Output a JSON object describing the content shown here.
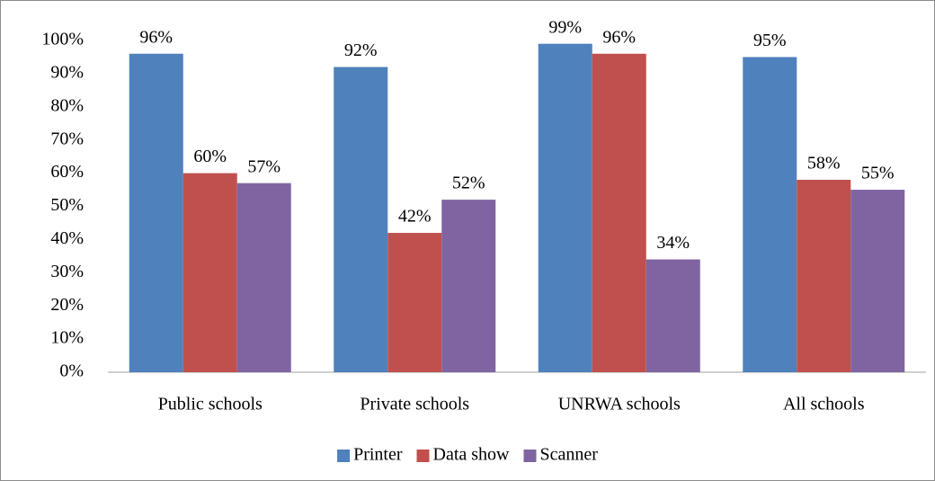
{
  "chart_data": {
    "type": "bar",
    "categories": [
      "Public schools",
      "Private schools",
      "UNRWA schools",
      "All schools"
    ],
    "series": [
      {
        "name": "Printer",
        "color": "#4f81bd",
        "values": [
          96,
          92,
          99,
          95
        ],
        "value_labels": [
          "96%",
          "92%",
          "99%",
          "95%"
        ]
      },
      {
        "name": "Data show",
        "color": "#c0504d",
        "values": [
          60,
          42,
          96,
          58
        ],
        "value_labels": [
          "60%",
          "42%",
          "96%",
          "58%"
        ]
      },
      {
        "name": "Scanner",
        "color": "#8064a2",
        "values": [
          57,
          52,
          34,
          55
        ],
        "value_labels": [
          "57%",
          "52%",
          "34%",
          "55%"
        ]
      }
    ],
    "ylim": [
      0,
      100
    ],
    "yticks": [
      {
        "value": 0,
        "label": "0%"
      },
      {
        "value": 10,
        "label": "10%"
      },
      {
        "value": 20,
        "label": "20%"
      },
      {
        "value": 30,
        "label": "30%"
      },
      {
        "value": 40,
        "label": "40%"
      },
      {
        "value": 50,
        "label": "50%"
      },
      {
        "value": 60,
        "label": "60%"
      },
      {
        "value": 70,
        "label": "70%"
      },
      {
        "value": 80,
        "label": "80%"
      },
      {
        "value": 90,
        "label": "90%"
      },
      {
        "value": 100,
        "label": "100%"
      }
    ],
    "grid": false,
    "legend": "bottom"
  }
}
